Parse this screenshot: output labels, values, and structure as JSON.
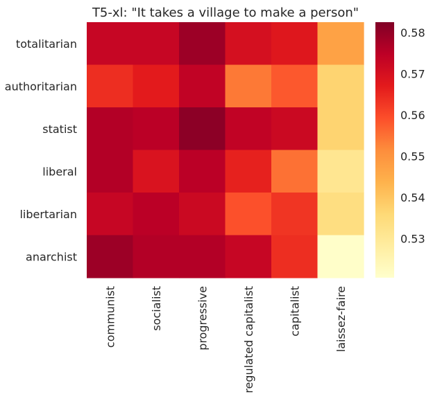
{
  "chart_data": {
    "type": "heatmap",
    "title": "T5-xl: \"It takes a village to make a person\"",
    "xlabel": "",
    "ylabel": "",
    "x_categories": [
      "communist",
      "socialist",
      "progressive",
      "regulated capitalist",
      "capitalist",
      "laissez-faire"
    ],
    "y_categories": [
      "totalitarian",
      "authoritarian",
      "statist",
      "liberal",
      "libertarian",
      "anarchist"
    ],
    "values": [
      [
        0.573,
        0.573,
        0.579,
        0.57,
        0.568,
        0.547
      ],
      [
        0.564,
        0.567,
        0.574,
        0.554,
        0.558,
        0.537
      ],
      [
        0.576,
        0.575,
        0.581,
        0.574,
        0.572,
        0.537
      ],
      [
        0.576,
        0.569,
        0.575,
        0.566,
        0.555,
        0.531
      ],
      [
        0.573,
        0.575,
        0.572,
        0.559,
        0.563,
        0.534
      ],
      [
        0.579,
        0.576,
        0.576,
        0.573,
        0.564,
        0.521
      ]
    ],
    "colorbar": {
      "min": 0.5205,
      "max": 0.5825,
      "ticks": [
        0.53,
        0.54,
        0.55,
        0.56,
        0.57,
        0.58
      ],
      "tick_labels": [
        "0.53",
        "0.54",
        "0.55",
        "0.56",
        "0.57",
        "0.58"
      ],
      "colormap": "YlOrRd"
    }
  }
}
